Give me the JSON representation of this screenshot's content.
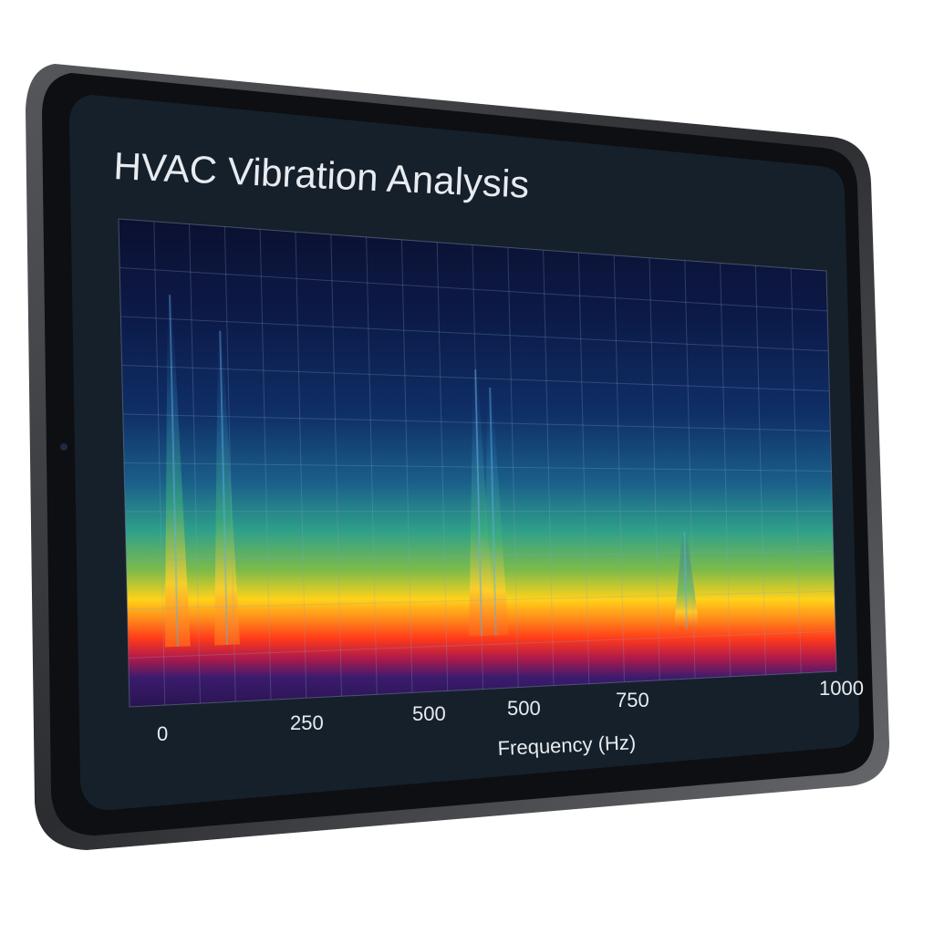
{
  "screen": {
    "title": "HVAC Vibration Analysis"
  },
  "chart_data": {
    "type": "heatmap",
    "title": "HVAC Vibration Analysis",
    "xlabel": "Frequency (Hz)",
    "ylabel": "",
    "x_tick_labels": [
      "0",
      "250",
      "500",
      "500",
      "750",
      "1000"
    ],
    "xlim": [
      0,
      1000
    ],
    "grid": true,
    "colormap": [
      "#1a0f3a",
      "#3b1b6e",
      "#e0203a",
      "#ff6a1a",
      "#ffd21a",
      "#2fae8a",
      "#1a6fa8",
      "#0f2a66",
      "#0b1030"
    ],
    "peaks_hz": [
      70,
      140,
      500,
      520,
      790
    ]
  },
  "colors": {
    "bezel": "#0d0f12",
    "frame": "#2a2c30",
    "screen_bg": "#16202b",
    "plot_bg": "#0b1030",
    "text": "#e8ecf0"
  }
}
